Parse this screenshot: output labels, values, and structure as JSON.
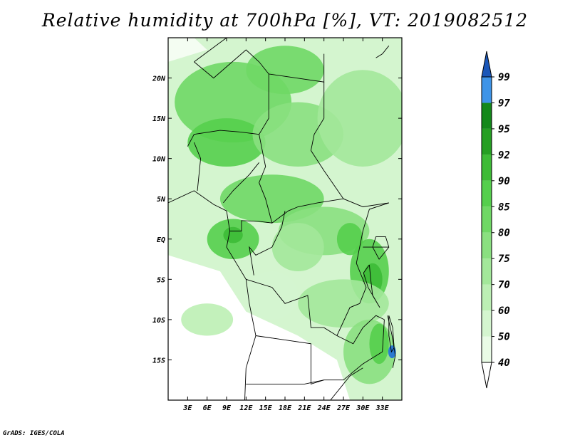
{
  "title": "Relative humidity at 700hPa [%], VT: 2019082512",
  "credit": "GrADS: IGES/COLA",
  "map": {
    "lon_range": [
      0,
      36
    ],
    "lat_range": [
      -20,
      25
    ],
    "lon_ticks": [
      {
        "value": 3,
        "label": "3E"
      },
      {
        "value": 6,
        "label": "6E"
      },
      {
        "value": 9,
        "label": "9E"
      },
      {
        "value": 12,
        "label": "12E"
      },
      {
        "value": 15,
        "label": "15E"
      },
      {
        "value": 18,
        "label": "18E"
      },
      {
        "value": 21,
        "label": "21E"
      },
      {
        "value": 24,
        "label": "24E"
      },
      {
        "value": 27,
        "label": "27E"
      },
      {
        "value": 30,
        "label": "30E"
      },
      {
        "value": 33,
        "label": "33E"
      }
    ],
    "lat_ticks": [
      {
        "value": 20,
        "label": "20N"
      },
      {
        "value": 15,
        "label": "15N"
      },
      {
        "value": 10,
        "label": "10N"
      },
      {
        "value": 5,
        "label": "5N"
      },
      {
        "value": 0,
        "label": "EQ"
      },
      {
        "value": -5,
        "label": "5S"
      },
      {
        "value": -10,
        "label": "10S"
      },
      {
        "value": -15,
        "label": "15S"
      }
    ]
  },
  "colorbar": {
    "levels": [
      "40",
      "50",
      "60",
      "70",
      "75",
      "80",
      "85",
      "90",
      "92",
      "95",
      "97",
      "99"
    ],
    "colors": [
      "#e9fbe6",
      "#d4f5cf",
      "#bcefb4",
      "#a3e89a",
      "#8ae080",
      "#6fd865",
      "#55cf4d",
      "#3dbb36",
      "#259f22",
      "#13881a",
      "#3e94e8",
      "#1f6fd8",
      "#1a56b8"
    ]
  },
  "humidity_patches": [
    {
      "lon": 10,
      "lat": 17,
      "rx": 9,
      "ry": 5,
      "level": 5
    },
    {
      "lon": 9,
      "lat": 12,
      "rx": 6,
      "ry": 3,
      "level": 6
    },
    {
      "lon": 18,
      "lat": 21,
      "rx": 6,
      "ry": 3,
      "level": 5
    },
    {
      "lon": 20,
      "lat": 13,
      "rx": 7,
      "ry": 4,
      "level": 4
    },
    {
      "lon": 30,
      "lat": 15,
      "rx": 7,
      "ry": 6,
      "level": 3
    },
    {
      "lon": 16,
      "lat": 5,
      "rx": 8,
      "ry": 3,
      "level": 5
    },
    {
      "lon": 10,
      "lat": 0,
      "rx": 4,
      "ry": 2.5,
      "level": 6
    },
    {
      "lon": 10,
      "lat": 0.5,
      "rx": 1.5,
      "ry": 1,
      "level": 7
    },
    {
      "lon": 24,
      "lat": 1,
      "rx": 7,
      "ry": 3,
      "level": 4
    },
    {
      "lon": 28,
      "lat": 0,
      "rx": 2,
      "ry": 2,
      "level": 6
    },
    {
      "lon": 31,
      "lat": -4,
      "rx": 3,
      "ry": 4,
      "level": 6
    },
    {
      "lon": 31.5,
      "lat": -5,
      "rx": 1.5,
      "ry": 2,
      "level": 7
    },
    {
      "lon": 27,
      "lat": -8,
      "rx": 7,
      "ry": 3,
      "level": 3
    },
    {
      "lon": 31,
      "lat": -14,
      "rx": 4,
      "ry": 4,
      "level": 4
    },
    {
      "lon": 32.5,
      "lat": -13,
      "rx": 1.5,
      "ry": 2.5,
      "level": 6
    },
    {
      "lon": 34.5,
      "lat": -14,
      "rx": 0.6,
      "ry": 0.8,
      "level": 11
    },
    {
      "lon": 6,
      "lat": -10,
      "rx": 4,
      "ry": 2,
      "level": 2
    },
    {
      "lon": 16,
      "lat": -7,
      "rx": 4,
      "ry": 3,
      "level": 1
    },
    {
      "lon": 20,
      "lat": -1,
      "rx": 4,
      "ry": 3,
      "level": 3
    }
  ]
}
